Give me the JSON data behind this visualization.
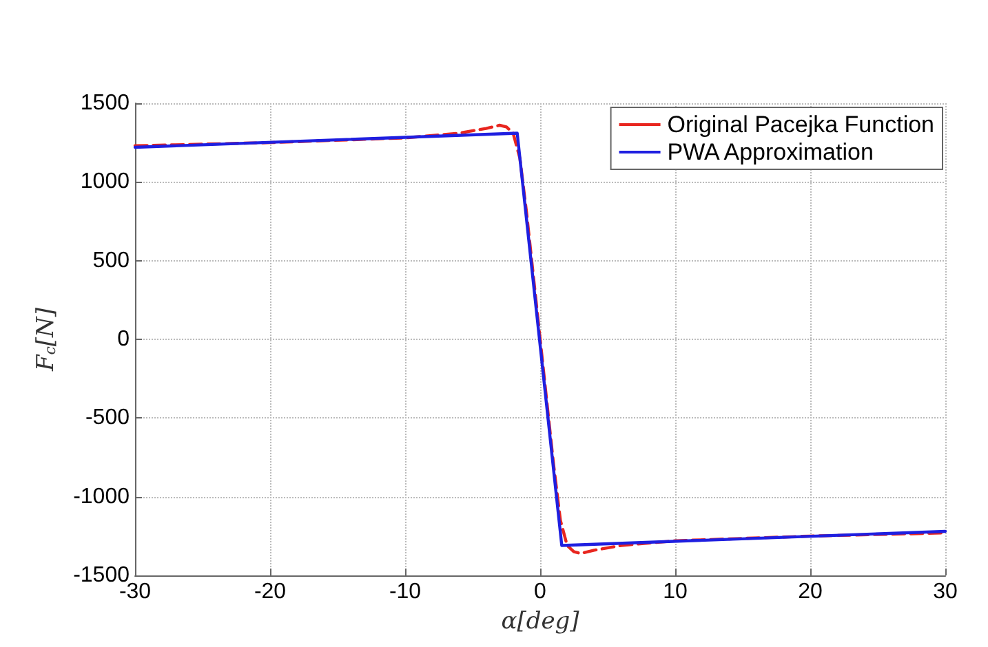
{
  "chart_data": {
    "type": "line",
    "xlabel": "α[deg]",
    "ylabel": "F$_{c}$[N]",
    "xlim": [
      -30,
      30
    ],
    "xticks": [
      -30,
      -20,
      -10,
      0,
      10,
      20,
      30
    ],
    "ylim": [
      -1500,
      1500
    ],
    "yticks": [
      -1500,
      -1000,
      -500,
      0,
      500,
      1000,
      1500
    ],
    "grid": true,
    "legend": "top right",
    "marker": "none",
    "series": [
      {
        "name": "Original Pacejka Function",
        "color": "#e8261f",
        "line_style": "dashed",
        "x": [
          -30,
          -20,
          -10,
          -6,
          -4,
          -3,
          -2.5,
          -2,
          -1.5,
          -1,
          -0.5,
          0,
          0.5,
          1,
          1.5,
          2,
          2.5,
          3,
          4,
          6,
          10,
          20,
          30
        ],
        "values": [
          1230,
          1250,
          1280,
          1310,
          1340,
          1360,
          1350,
          1310,
          1150,
          800,
          400,
          0,
          -400,
          -800,
          -1150,
          -1310,
          -1350,
          -1360,
          -1340,
          -1310,
          -1280,
          -1250,
          -1230
        ]
      },
      {
        "name": "PWA Approximation",
        "color": "#1f1fe0",
        "line_style": "solid",
        "x": [
          -30,
          -1.7,
          1.6,
          30
        ],
        "values": [
          1220,
          1310,
          -1310,
          -1220
        ]
      }
    ]
  }
}
